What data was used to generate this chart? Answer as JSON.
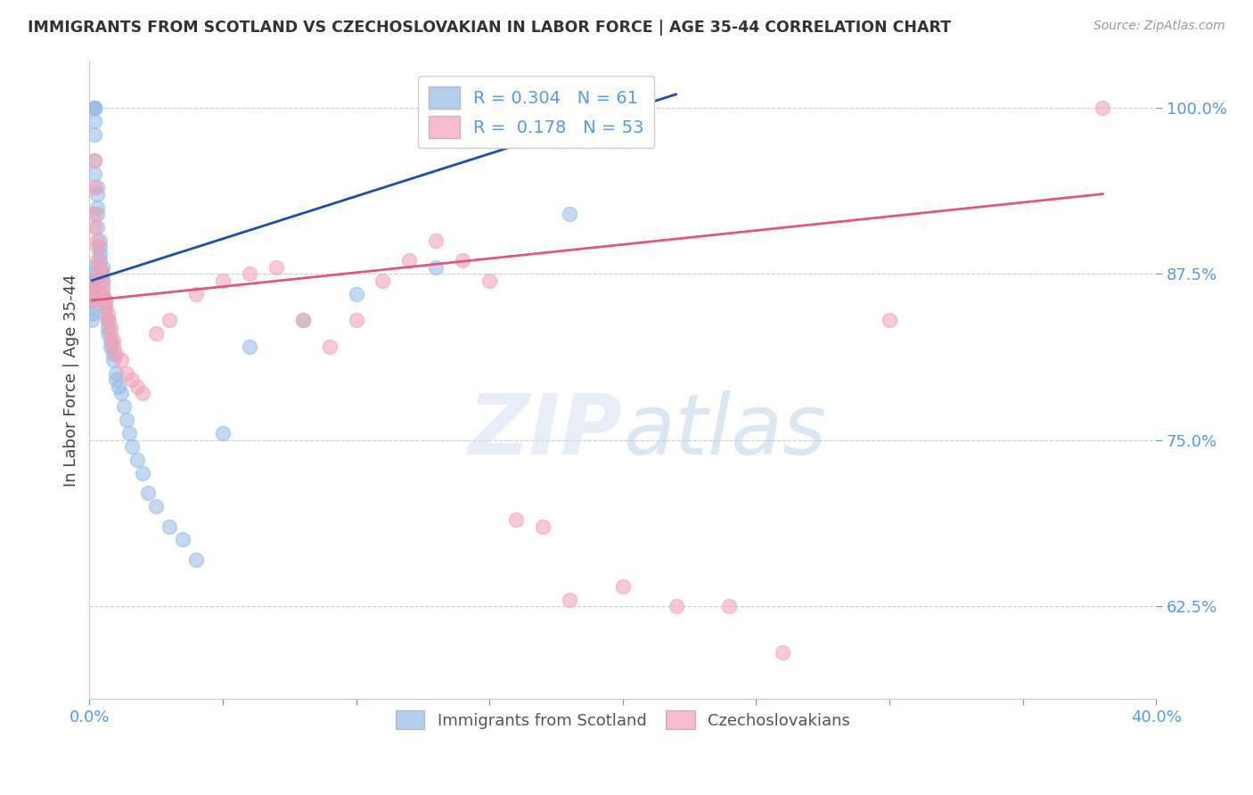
{
  "title": "IMMIGRANTS FROM SCOTLAND VS CZECHOSLOVAKIAN IN LABOR FORCE | AGE 35-44 CORRELATION CHART",
  "source": "Source: ZipAtlas.com",
  "ylabel": "In Labor Force | Age 35-44",
  "xlim": [
    0.0,
    0.4
  ],
  "ylim": [
    0.555,
    1.035
  ],
  "xticks": [
    0.0,
    0.05,
    0.1,
    0.15,
    0.2,
    0.25,
    0.3,
    0.35,
    0.4
  ],
  "xtick_labels": [
    "0.0%",
    "",
    "",
    "",
    "",
    "",
    "",
    "",
    "40.0%"
  ],
  "yticks": [
    0.625,
    0.75,
    0.875,
    1.0
  ],
  "ytick_labels": [
    "62.5%",
    "75.0%",
    "87.5%",
    "100.0%"
  ],
  "blue_color": "#92bce8",
  "pink_color": "#f4a0b5",
  "blue_line_color": "#1a4fad",
  "pink_line_color": "#e05878",
  "scotland_N": 61,
  "czech_N": 53,
  "scotland_R": 0.304,
  "czech_R": 0.178,
  "scotland_x": [
    0.001,
    0.001,
    0.001,
    0.001,
    0.001,
    0.001,
    0.001,
    0.001,
    0.001,
    0.001,
    0.002,
    0.002,
    0.002,
    0.002,
    0.002,
    0.002,
    0.002,
    0.003,
    0.003,
    0.003,
    0.003,
    0.003,
    0.004,
    0.004,
    0.004,
    0.004,
    0.005,
    0.005,
    0.005,
    0.005,
    0.006,
    0.006,
    0.006,
    0.007,
    0.007,
    0.007,
    0.008,
    0.008,
    0.009,
    0.009,
    0.01,
    0.01,
    0.011,
    0.012,
    0.013,
    0.014,
    0.015,
    0.016,
    0.018,
    0.02,
    0.022,
    0.025,
    0.03,
    0.035,
    0.04,
    0.05,
    0.06,
    0.08,
    0.1,
    0.13,
    0.18
  ],
  "scotland_y": [
    0.88,
    0.875,
    0.87,
    0.87,
    0.865,
    0.86,
    0.855,
    0.85,
    0.845,
    0.84,
    1.0,
    1.0,
    1.0,
    0.99,
    0.98,
    0.96,
    0.95,
    0.94,
    0.935,
    0.925,
    0.92,
    0.91,
    0.9,
    0.895,
    0.89,
    0.885,
    0.88,
    0.875,
    0.87,
    0.86,
    0.855,
    0.85,
    0.845,
    0.84,
    0.835,
    0.83,
    0.825,
    0.82,
    0.815,
    0.81,
    0.8,
    0.795,
    0.79,
    0.785,
    0.775,
    0.765,
    0.755,
    0.745,
    0.735,
    0.725,
    0.71,
    0.7,
    0.685,
    0.675,
    0.66,
    0.755,
    0.82,
    0.84,
    0.86,
    0.88,
    0.92
  ],
  "czech_x": [
    0.001,
    0.001,
    0.001,
    0.001,
    0.002,
    0.002,
    0.002,
    0.002,
    0.003,
    0.003,
    0.003,
    0.004,
    0.004,
    0.005,
    0.005,
    0.005,
    0.006,
    0.006,
    0.007,
    0.007,
    0.008,
    0.008,
    0.009,
    0.009,
    0.01,
    0.012,
    0.014,
    0.016,
    0.018,
    0.02,
    0.025,
    0.03,
    0.04,
    0.05,
    0.06,
    0.07,
    0.08,
    0.09,
    0.1,
    0.11,
    0.12,
    0.13,
    0.14,
    0.15,
    0.16,
    0.17,
    0.18,
    0.2,
    0.22,
    0.24,
    0.26,
    0.3,
    0.38
  ],
  "czech_y": [
    0.87,
    0.865,
    0.86,
    0.855,
    0.96,
    0.94,
    0.92,
    0.91,
    0.9,
    0.895,
    0.885,
    0.88,
    0.875,
    0.87,
    0.865,
    0.86,
    0.855,
    0.85,
    0.845,
    0.84,
    0.835,
    0.83,
    0.825,
    0.82,
    0.815,
    0.81,
    0.8,
    0.795,
    0.79,
    0.785,
    0.83,
    0.84,
    0.86,
    0.87,
    0.875,
    0.88,
    0.84,
    0.82,
    0.84,
    0.87,
    0.885,
    0.9,
    0.885,
    0.87,
    0.69,
    0.685,
    0.63,
    0.64,
    0.625,
    0.625,
    0.59,
    0.84,
    1.0
  ],
  "watermark_zip": "ZIP",
  "watermark_atlas": "atlas",
  "background_color": "#ffffff",
  "grid_color": "#c8c8c8",
  "tick_color": "#5599ee",
  "title_color": "#333333",
  "ylabel_color": "#444444"
}
